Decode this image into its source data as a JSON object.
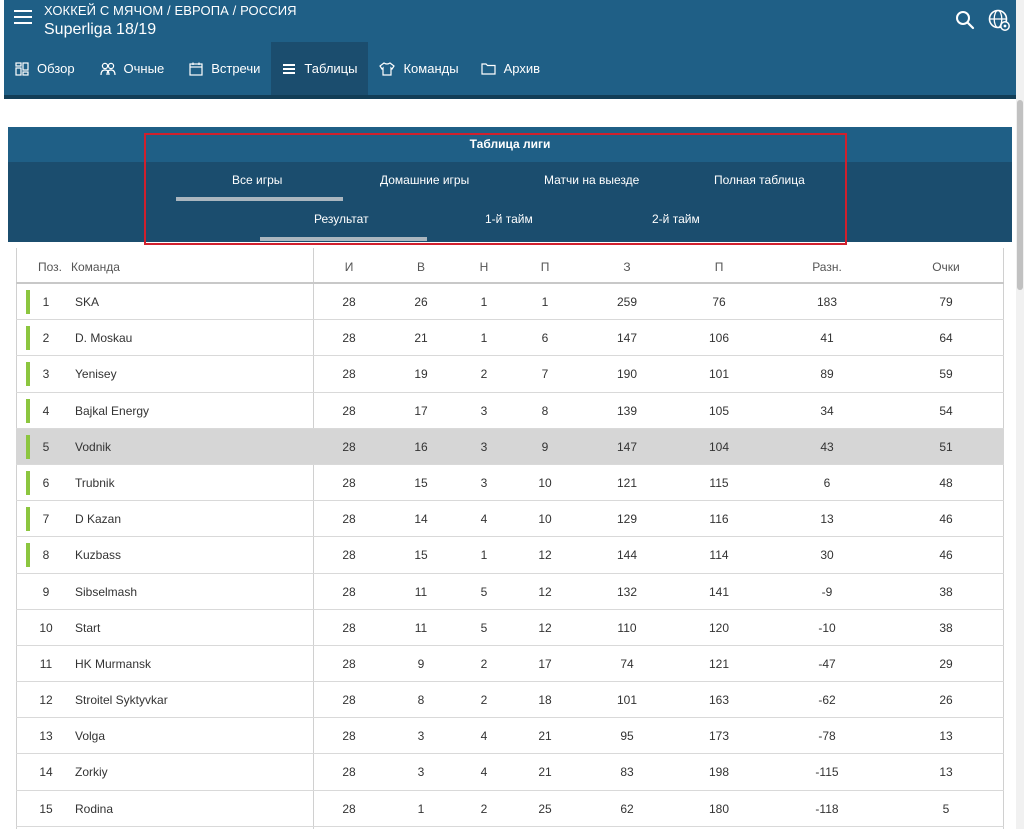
{
  "header": {
    "breadcrumb": "ХОККЕЙ С МЯЧОМ / ЕВРОПА / РОССИЯ",
    "title": "Superliga 18/19"
  },
  "nav": [
    {
      "label": "Обзор",
      "icon": "overview-icon"
    },
    {
      "label": "Очные",
      "icon": "head-to-head-icon"
    },
    {
      "label": "Встречи",
      "icon": "calendar-icon"
    },
    {
      "label": "Таблицы",
      "icon": "table-icon"
    },
    {
      "label": "Команды",
      "icon": "shirt-icon"
    },
    {
      "label": "Архив",
      "icon": "folder-icon"
    }
  ],
  "table_card": {
    "title": "Таблица лиги",
    "scope_tabs": [
      "Все игры",
      "Домашние игры",
      "Матчи на выезде",
      "Полная таблица"
    ],
    "period_tabs": [
      "Результат",
      "1-й тайм",
      "2-й тайм"
    ],
    "selected_scope": "Все игры",
    "selected_period": "Результат"
  },
  "columns": [
    "Поз.",
    "Команда",
    "И",
    "В",
    "Н",
    "П",
    "З",
    "П",
    "Разн.",
    "Очки"
  ],
  "rows": [
    {
      "pos": "1",
      "team": "SKA",
      "games": "28",
      "wins": "26",
      "draws": "1",
      "losses": "1",
      "scored": "259",
      "conceded": "76",
      "diff": "183",
      "points": "79"
    },
    {
      "pos": "2",
      "team": "D. Moskau",
      "games": "28",
      "wins": "21",
      "draws": "1",
      "losses": "6",
      "scored": "147",
      "conceded": "106",
      "diff": "41",
      "points": "64"
    },
    {
      "pos": "3",
      "team": "Yenisey",
      "games": "28",
      "wins": "19",
      "draws": "2",
      "losses": "7",
      "scored": "190",
      "conceded": "101",
      "diff": "89",
      "points": "59"
    },
    {
      "pos": "4",
      "team": "Bajkal Energy",
      "games": "28",
      "wins": "17",
      "draws": "3",
      "losses": "8",
      "scored": "139",
      "conceded": "105",
      "diff": "34",
      "points": "54"
    },
    {
      "pos": "5",
      "team": "Vodnik",
      "games": "28",
      "wins": "16",
      "draws": "3",
      "losses": "9",
      "scored": "147",
      "conceded": "104",
      "diff": "43",
      "points": "51"
    },
    {
      "pos": "6",
      "team": "Trubnik",
      "games": "28",
      "wins": "15",
      "draws": "3",
      "losses": "10",
      "scored": "121",
      "conceded": "115",
      "diff": "6",
      "points": "48"
    },
    {
      "pos": "7",
      "team": "D Kazan",
      "games": "28",
      "wins": "14",
      "draws": "4",
      "losses": "10",
      "scored": "129",
      "conceded": "116",
      "diff": "13",
      "points": "46"
    },
    {
      "pos": "8",
      "team": "Kuzbass",
      "games": "28",
      "wins": "15",
      "draws": "1",
      "losses": "12",
      "scored": "144",
      "conceded": "114",
      "diff": "30",
      "points": "46"
    },
    {
      "pos": "9",
      "team": "Sibselmash",
      "games": "28",
      "wins": "11",
      "draws": "5",
      "losses": "12",
      "scored": "132",
      "conceded": "141",
      "diff": "-9",
      "points": "38"
    },
    {
      "pos": "10",
      "team": "Start",
      "games": "28",
      "wins": "11",
      "draws": "5",
      "losses": "12",
      "scored": "110",
      "conceded": "120",
      "diff": "-10",
      "points": "38"
    },
    {
      "pos": "11",
      "team": "HK Murmansk",
      "games": "28",
      "wins": "9",
      "draws": "2",
      "losses": "17",
      "scored": "74",
      "conceded": "121",
      "diff": "-47",
      "points": "29"
    },
    {
      "pos": "12",
      "team": "Stroitel Syktyvkar",
      "games": "28",
      "wins": "8",
      "draws": "2",
      "losses": "18",
      "scored": "101",
      "conceded": "163",
      "diff": "-62",
      "points": "26"
    },
    {
      "pos": "13",
      "team": "Volga",
      "games": "28",
      "wins": "3",
      "draws": "4",
      "losses": "21",
      "scored": "95",
      "conceded": "173",
      "diff": "-78",
      "points": "13"
    },
    {
      "pos": "14",
      "team": "Zorkiy",
      "games": "28",
      "wins": "3",
      "draws": "4",
      "losses": "21",
      "scored": "83",
      "conceded": "198",
      "diff": "-115",
      "points": "13"
    },
    {
      "pos": "15",
      "team": "Rodina",
      "games": "28",
      "wins": "1",
      "draws": "2",
      "losses": "25",
      "scored": "62",
      "conceded": "180",
      "diff": "-118",
      "points": "5"
    }
  ],
  "qualification_rows": 8,
  "highlighted_row": 5,
  "colors": {
    "header": "#1f5f86",
    "header_dark": "#1b4d6e",
    "qualification_bar": "#8cc63f",
    "highlight_row": "#d6d6d6",
    "annotation_box": "#d0202d"
  }
}
